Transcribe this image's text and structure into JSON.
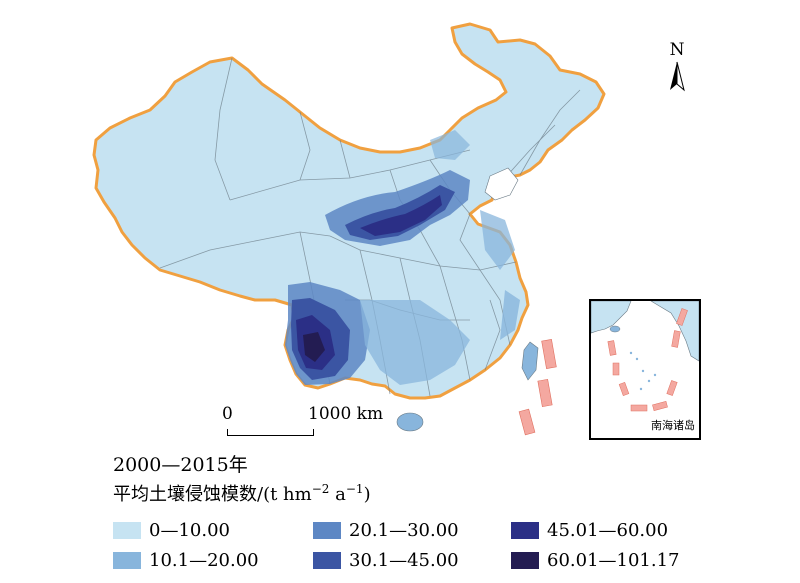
{
  "north_label": "N",
  "scale": {
    "zero_label": "0",
    "max_label": "1000 km"
  },
  "inset_label": "南海诸岛",
  "title": "2000—2015年",
  "subtitle_prefix": "平均土壤侵蚀模数/(t hm",
  "subtitle_exp1": "−2",
  "subtitle_mid": " a",
  "subtitle_exp2": "−1",
  "subtitle_suffix": ")",
  "legend": [
    {
      "label": "0—10.00",
      "color": "#c6e3f2"
    },
    {
      "label": "10.1—20.00",
      "color": "#88b5dc"
    },
    {
      "label": "20.1—30.00",
      "color": "#5d87c4"
    },
    {
      "label": "30.1—45.00",
      "color": "#3b55a3"
    },
    {
      "label": "45.01—60.00",
      "color": "#2b2f86"
    },
    {
      "label": "60.01—101.17",
      "color": "#231c52"
    }
  ],
  "colors": {
    "boundary": "#f0a040",
    "land": "#c6e3f2",
    "province_lines": "#6a7a85",
    "marker": "#f4a8a0"
  }
}
